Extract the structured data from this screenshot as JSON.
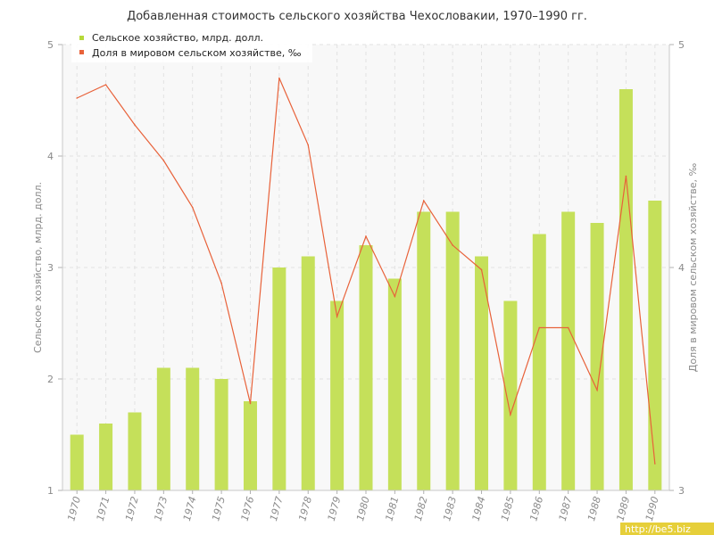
{
  "chart_data": {
    "type": "bar+line",
    "title": "Добавленная стоимость сельского хозяйства Чехословакии, 1970–1990 гг.",
    "categories": [
      "1970",
      "1971",
      "1972",
      "1973",
      "1974",
      "1975",
      "1976",
      "1977",
      "1978",
      "1979",
      "1980",
      "1981",
      "1982",
      "1983",
      "1984",
      "1985",
      "1986",
      "1987",
      "1988",
      "1989",
      "1990"
    ],
    "series": [
      {
        "name": "Сельское хозяйство, млрд. долл.",
        "type": "bar",
        "axis": "left",
        "color": "#c5e05a",
        "values": [
          1.5,
          1.6,
          1.7,
          2.1,
          2.1,
          2.0,
          1.8,
          3.0,
          3.1,
          2.7,
          3.2,
          2.9,
          3.5,
          3.5,
          3.1,
          2.7,
          3.3,
          3.5,
          3.4,
          4.6,
          3.6
        ]
      },
      {
        "name": "Доля в мировом сельском хозяйстве, ‰",
        "type": "line",
        "axis": "right",
        "color": "#e8623a",
        "values": [
          4.76,
          4.82,
          4.64,
          4.48,
          4.27,
          3.93,
          3.39,
          4.85,
          4.55,
          3.78,
          4.14,
          3.87,
          4.3,
          4.1,
          3.99,
          3.34,
          3.73,
          3.73,
          3.45,
          4.41,
          3.12
        ]
      }
    ],
    "ylabel": "Сельское хозяйство, млрд. долл.",
    "ylabel_right": "Доля в мировом сельском хозяйстве, ‰",
    "ylim": [
      1,
      5
    ],
    "ylim_right": [
      3,
      5
    ],
    "yticks": [
      "1",
      "2",
      "3",
      "4",
      "5"
    ],
    "yticks_right": [
      "3",
      "4",
      "5"
    ],
    "grid": true,
    "legend_position": "top-left"
  },
  "watermark": "http://be5.biz"
}
